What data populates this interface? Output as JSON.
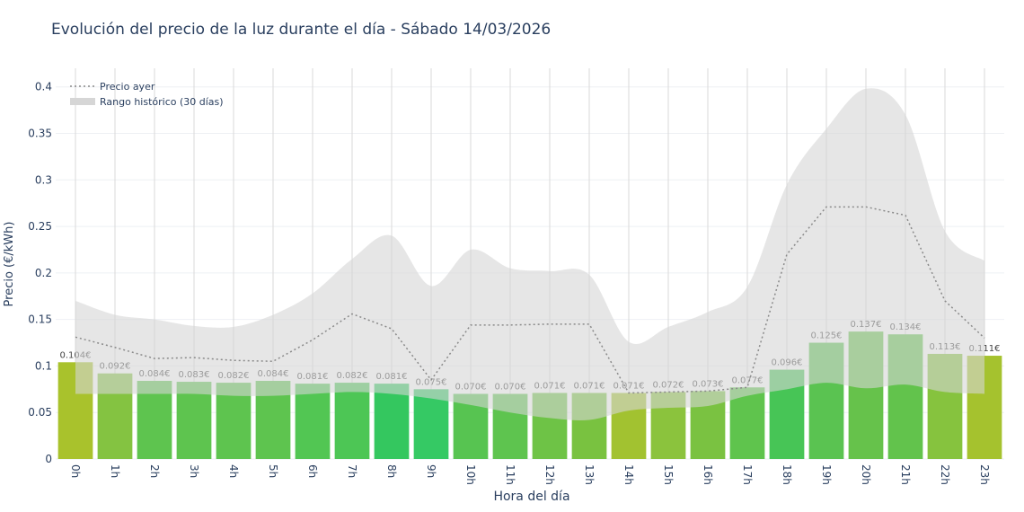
{
  "chart_data": {
    "type": "bar",
    "title": "Evolución del precio de la luz durante el día - Sábado 14/03/2026",
    "xlabel": "Hora del día",
    "ylabel": "Precio (€/kWh)",
    "categories": [
      "0h",
      "1h",
      "2h",
      "3h",
      "4h",
      "5h",
      "6h",
      "7h",
      "8h",
      "9h",
      "10h",
      "11h",
      "12h",
      "13h",
      "14h",
      "15h",
      "16h",
      "17h",
      "18h",
      "19h",
      "20h",
      "21h",
      "22h",
      "23h"
    ],
    "values": [
      0.104,
      0.092,
      0.084,
      0.083,
      0.082,
      0.084,
      0.081,
      0.082,
      0.081,
      0.075,
      0.07,
      0.07,
      0.071,
      0.071,
      0.071,
      0.072,
      0.073,
      0.077,
      0.096,
      0.125,
      0.137,
      0.134,
      0.113,
      0.111
    ],
    "value_labels": [
      "0.104€",
      "0.092€",
      "0.084€",
      "0.083€",
      "0.082€",
      "0.084€",
      "0.081€",
      "0.082€",
      "0.081€",
      "0.075€",
      "0.070€",
      "0.070€",
      "0.071€",
      "0.071€",
      "0.071€",
      "0.072€",
      "0.073€",
      "0.077€",
      "0.096€",
      "0.125€",
      "0.137€",
      "0.134€",
      "0.113€",
      "0.111€"
    ],
    "colors": [
      "#a9c22c",
      "#84c341",
      "#5ec44f",
      "#5ec44f",
      "#5ec44f",
      "#5ec44f",
      "#52c653",
      "#4dc655",
      "#34c75f",
      "#35c964",
      "#57c451",
      "#5ec44f",
      "#6ec346",
      "#79c240",
      "#a2c230",
      "#8bc33d",
      "#7ac241",
      "#5fc44d",
      "#47c556",
      "#5ac351",
      "#66c24b",
      "#62c34c",
      "#86c33e",
      "#a5c22e"
    ],
    "series": [
      {
        "name": "Precio ayer",
        "type": "line",
        "color": "#8a8a8a",
        "values": [
          0.131,
          0.12,
          0.108,
          0.109,
          0.106,
          0.105,
          0.128,
          0.156,
          0.14,
          0.085,
          0.144,
          0.144,
          0.145,
          0.145,
          0.071,
          0.072,
          0.073,
          0.077,
          0.22,
          0.271,
          0.271,
          0.262,
          0.17,
          0.13
        ]
      },
      {
        "name": "Rango histórico (30 días)",
        "type": "range",
        "color": "#d6d6d6",
        "upper": [
          0.17,
          0.155,
          0.15,
          0.143,
          0.142,
          0.155,
          0.178,
          0.215,
          0.24,
          0.186,
          0.225,
          0.205,
          0.202,
          0.198,
          0.126,
          0.142,
          0.158,
          0.185,
          0.295,
          0.355,
          0.398,
          0.37,
          0.245,
          0.213
        ],
        "lower": [
          0.07,
          0.07,
          0.07,
          0.07,
          0.068,
          0.068,
          0.07,
          0.072,
          0.07,
          0.065,
          0.058,
          0.05,
          0.044,
          0.042,
          0.052,
          0.055,
          0.057,
          0.068,
          0.075,
          0.082,
          0.076,
          0.08,
          0.072,
          0.07
        ]
      }
    ],
    "ylim": [
      0,
      0.42
    ],
    "yticks": [
      0,
      0.05,
      0.1,
      0.15,
      0.2,
      0.25,
      0.3,
      0.35,
      0.4
    ],
    "grid": true
  }
}
